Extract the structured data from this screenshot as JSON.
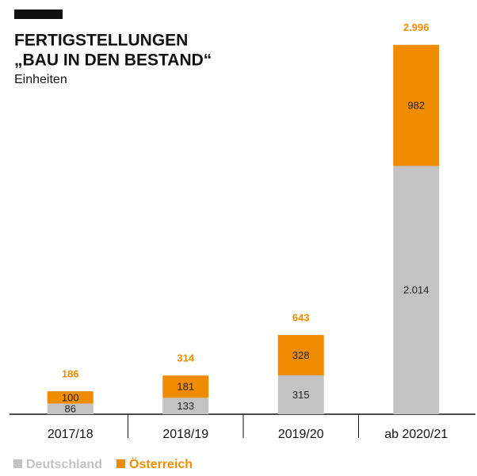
{
  "chart_data": {
    "type": "stacked-bar",
    "title": [
      "FERTIGSTELLUNGEN",
      "„BAU IN DEN BESTAND“"
    ],
    "subtitle": "Einheiten",
    "categories": [
      "2017/18",
      "2018/19",
      "2019/20",
      "ab 2020/21"
    ],
    "series": [
      {
        "name": "Deutschland",
        "color": "#c3c3c3",
        "values": [
          86,
          133,
          315,
          2014
        ],
        "value_labels": [
          "86",
          "133",
          "315",
          "2.014"
        ]
      },
      {
        "name": "Österreich",
        "color": "#f08c00",
        "values": [
          100,
          181,
          328,
          982
        ],
        "value_labels": [
          "100",
          "181",
          "328",
          "982"
        ]
      }
    ],
    "totals": {
      "values": [
        186,
        314,
        643,
        2996
      ],
      "value_labels": [
        "186",
        "314",
        "643",
        "2.996"
      ],
      "color": "#f08c00"
    },
    "ylim": [
      0,
      3000
    ]
  }
}
